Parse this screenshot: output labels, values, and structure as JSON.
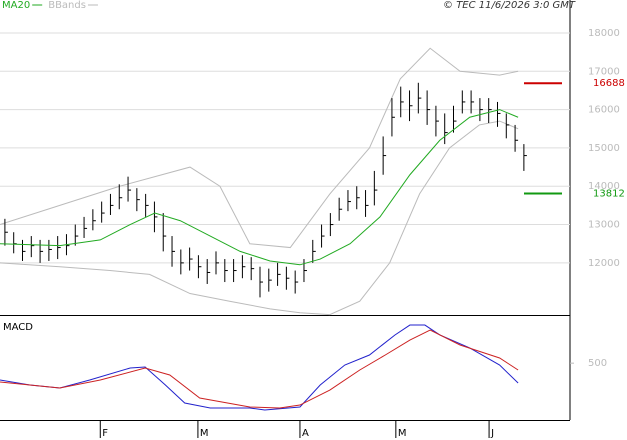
{
  "chart_data": [
    {
      "type": "ohlc",
      "credit": "© TEC 11/6/2026 3:0 GMT",
      "xlim": [
        -0.5,
        64.3
      ],
      "ylim": [
        10640,
        18860
      ],
      "yticks": [
        12000,
        13000,
        14000,
        15000,
        16000,
        17000,
        18000
      ],
      "grid": true,
      "ohlc": {
        "color": "#000000",
        "high": [
          13150,
          12800,
          12600,
          12700,
          12600,
          12600,
          12700,
          12750,
          13000,
          13200,
          13400,
          13600,
          13800,
          14050,
          14250,
          13950,
          13800,
          13600,
          13300,
          12700,
          12350,
          12400,
          12200,
          12100,
          12300,
          12100,
          12100,
          12200,
          12150,
          11900,
          11850,
          12000,
          11900,
          11800,
          12100,
          12600,
          13000,
          13300,
          13700,
          13900,
          14000,
          13900,
          14400,
          15300,
          16300,
          16600,
          16500,
          16700,
          16500,
          16100,
          15900,
          16100,
          16500,
          16500,
          16300,
          16300,
          16200,
          15900,
          15600,
          15100
        ],
        "low": [
          12450,
          12250,
          12050,
          12150,
          12000,
          12050,
          12100,
          12200,
          12450,
          12650,
          12850,
          13050,
          13250,
          13400,
          13600,
          13350,
          13200,
          12800,
          12300,
          11900,
          11700,
          11800,
          11600,
          11450,
          11700,
          11500,
          11500,
          11600,
          11550,
          11100,
          11250,
          11400,
          11300,
          11200,
          11500,
          12000,
          12400,
          12700,
          13100,
          13350,
          13400,
          13200,
          13500,
          14300,
          15300,
          15800,
          15700,
          15900,
          15600,
          15300,
          15100,
          15400,
          15900,
          15900,
          15700,
          15650,
          15550,
          15250,
          14900,
          14400
        ],
        "close": [
          12800,
          12500,
          12300,
          12450,
          12300,
          12350,
          12400,
          12450,
          12700,
          12900,
          13100,
          13300,
          13500,
          13700,
          13900,
          13650,
          13500,
          13200,
          12700,
          12300,
          12000,
          12100,
          11900,
          11750,
          12000,
          11800,
          11800,
          11900,
          11850,
          11500,
          11550,
          11700,
          11600,
          11500,
          11800,
          12300,
          12700,
          13000,
          13400,
          13600,
          13700,
          13500,
          13900,
          14800,
          15800,
          16200,
          16100,
          16300,
          16000,
          15700,
          15400,
          15700,
          16200,
          16200,
          16000,
          16000,
          15900,
          15600,
          15200,
          14800
        ]
      },
      "series": [
        {
          "name": "MA20",
          "color": "#22aa22",
          "x": [
            -0.5,
            6.3,
            10.9,
            14.3,
            17.1,
            20,
            23.4,
            26.8,
            30.2,
            33.6,
            35.9,
            39.3,
            42.7,
            46.1,
            49.5,
            52.9,
            56.3,
            58.4
          ],
          "values": [
            12500,
            12450,
            12600,
            13000,
            13300,
            13100,
            12700,
            12300,
            12050,
            11950,
            12100,
            12500,
            13200,
            14300,
            15200,
            15800,
            16000,
            15800
          ]
        }
      ],
      "bands": {
        "name": "BBands",
        "color": "#bbbbbb",
        "upper": {
          "x": [
            -0.5,
            6.3,
            13.1,
            21.1,
            24.5,
            27.9,
            32.5,
            37,
            41.5,
            45,
            48.4,
            51.8,
            56.3,
            58.4
          ],
          "values": [
            13000,
            13500,
            14000,
            14500,
            14000,
            12500,
            12400,
            13800,
            15000,
            16800,
            17600,
            17000,
            16900,
            17000
          ]
        },
        "lower": {
          "x": [
            -0.5,
            6.3,
            12,
            16.5,
            21.1,
            25.6,
            30.2,
            33.6,
            37,
            40.4,
            43.8,
            47.2,
            50.6,
            54,
            56.3,
            58.4
          ],
          "values": [
            12000,
            11900,
            11800,
            11700,
            11200,
            11000,
            10800,
            10700,
            10650,
            11000,
            12000,
            13800,
            15000,
            15600,
            15700,
            15500
          ]
        }
      },
      "levels": [
        {
          "value": 16688,
          "color": "#cc0000"
        },
        {
          "value": 13812,
          "color": "#119911"
        }
      ]
    },
    {
      "type": "line",
      "title": "MACD",
      "xlim": [
        -0.5,
        64.3
      ],
      "ylim": [
        -300,
        1150
      ],
      "yticks": [
        500
      ],
      "xticks": [
        {
          "value": 10.9,
          "label": "F"
        },
        {
          "value": 22,
          "label": "M"
        },
        {
          "value": 33.6,
          "label": "A"
        },
        {
          "value": 44.5,
          "label": "M"
        },
        {
          "value": 55.1,
          "label": "J"
        }
      ],
      "series": [
        {
          "color": "#2222cc",
          "x": [
            -0.5,
            2.9,
            6.3,
            9.7,
            14.3,
            16,
            18.3,
            20.5,
            23.4,
            27.9,
            29.6,
            33.6,
            35.9,
            38.7,
            41.5,
            44.4,
            46.1,
            47.8,
            49.5,
            52.9,
            56.3,
            58.4
          ],
          "values": [
            263,
            193,
            150,
            263,
            432,
            446,
            193,
            -61,
            -131,
            -131,
            -159,
            -117,
            193,
            474,
            615,
            897,
            1037,
            1037,
            897,
            714,
            474,
            221
          ]
        },
        {
          "color": "#cc2222",
          "x": [
            -0.5,
            6.3,
            10.9,
            16,
            18.8,
            22.2,
            27.9,
            31.3,
            33.6,
            37,
            40.4,
            43.3,
            46.1,
            48.4,
            51.8,
            56.3,
            58.4
          ],
          "values": [
            235,
            150,
            263,
            432,
            334,
            10,
            -117,
            -131,
            -89,
            122,
            404,
            615,
            826,
            967,
            756,
            573,
            404
          ]
        }
      ]
    }
  ]
}
